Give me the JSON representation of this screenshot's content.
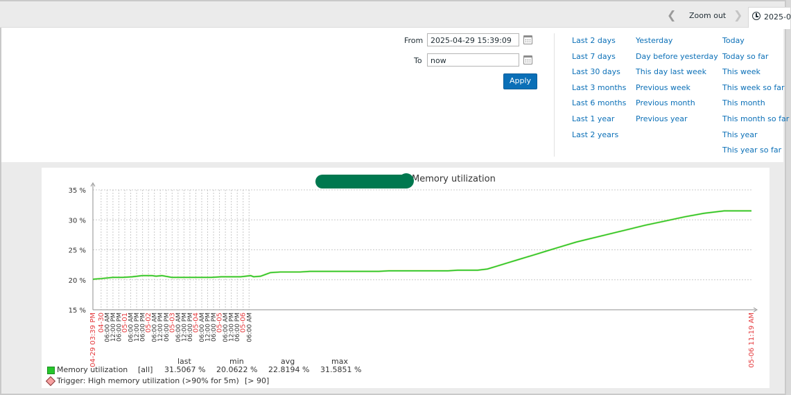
{
  "timebar": {
    "zoom_out": "Zoom out",
    "current_tab": "2025-0"
  },
  "filter": {
    "from_label": "From",
    "from_value": "2025-04-29 15:39:09",
    "to_label": "To",
    "to_value": "now",
    "apply": "Apply"
  },
  "quick_ranges": {
    "col1": [
      "Last 2 days",
      "Last 7 days",
      "Last 30 days",
      "Last 3 months",
      "Last 6 months",
      "Last 1 year",
      "Last 2 years"
    ],
    "col2": [
      "Yesterday",
      "Day before yesterday",
      "This day last week",
      "Previous week",
      "Previous month",
      "Previous year"
    ],
    "col3": [
      "Today",
      "Today so far",
      "This week",
      "This week so far",
      "This month",
      "This month so far",
      "This year",
      "This year so far"
    ]
  },
  "graph": {
    "title": "Memory utilization",
    "legend": {
      "item_name": "Memory utilization",
      "item_func": "[all]",
      "headers": [
        "last",
        "min",
        "avg",
        "max"
      ],
      "values": [
        "31.5067 %",
        "20.0622 %",
        "22.8194 %",
        "31.5851 %"
      ],
      "trigger": "Trigger: High memory utilization (>90% for 5m)",
      "trigger_threshold": "[> 90]"
    },
    "colors": {
      "line": "#25c62b",
      "date_label": "#e4393c",
      "trigger": "#f7a1a1"
    }
  },
  "chart_data": {
    "type": "line",
    "ylim": [
      15,
      35
    ],
    "y_ticks": [
      "35 %",
      "30 %",
      "25 %",
      "20 %",
      "15 %"
    ],
    "x_start_label": "04-29 03:39 PM",
    "x_end_label": "05-06 11:19 AM",
    "x_tick_labels": [
      "04-30",
      "06:00 AM",
      "12:00 PM",
      "06:00 PM",
      "05-01",
      "06:00 AM",
      "12:00 PM",
      "06:00 PM",
      "05-02",
      "06:00 AM",
      "12:00 PM",
      "06:00 PM",
      "05-03",
      "06:00 AM",
      "12:00 PM",
      "06:00 PM",
      "05-04",
      "06:00 AM",
      "12:00 PM",
      "06:00 PM",
      "05-05",
      "06:00 AM",
      "12:00 PM",
      "06:00 PM",
      "05-06",
      "06:00 AM"
    ],
    "x_tick_is_date": [
      true,
      false,
      false,
      false,
      true,
      false,
      false,
      false,
      true,
      false,
      false,
      false,
      true,
      false,
      false,
      false,
      true,
      false,
      false,
      false,
      true,
      false,
      false,
      false,
      true,
      false
    ],
    "series": [
      {
        "name": "Memory utilization",
        "x_hours": [
          0,
          8.3,
          20,
          30,
          40,
          50,
          60,
          64,
          70,
          80,
          90,
          95,
          100,
          110,
          120,
          130,
          140,
          150,
          160,
          163,
          170,
          180,
          190,
          200,
          210,
          220,
          230,
          240,
          250,
          260,
          270,
          280,
          290,
          300,
          310,
          320,
          330,
          340,
          350,
          360,
          370,
          380,
          390,
          400,
          410,
          420,
          430,
          440,
          450,
          460,
          470,
          480,
          490,
          500,
          520,
          540,
          560,
          580,
          600,
          620,
          640,
          650,
          660,
          667.7
        ],
        "values": [
          20.1,
          20.2,
          20.4,
          20.4,
          20.5,
          20.7,
          20.7,
          20.6,
          20.7,
          20.4,
          20.4,
          20.4,
          20.4,
          20.4,
          20.4,
          20.5,
          20.5,
          20.5,
          20.7,
          20.5,
          20.6,
          21.2,
          21.3,
          21.3,
          21.3,
          21.4,
          21.4,
          21.4,
          21.4,
          21.4,
          21.4,
          21.4,
          21.4,
          21.5,
          21.5,
          21.5,
          21.5,
          21.5,
          21.5,
          21.5,
          21.6,
          21.6,
          21.6,
          21.8,
          22.3,
          22.8,
          23.3,
          23.8,
          24.3,
          24.8,
          25.3,
          25.8,
          26.3,
          26.7,
          27.5,
          28.3,
          29.1,
          29.8,
          30.5,
          31.1,
          31.5,
          31.5,
          31.5,
          31.5
        ]
      }
    ]
  }
}
